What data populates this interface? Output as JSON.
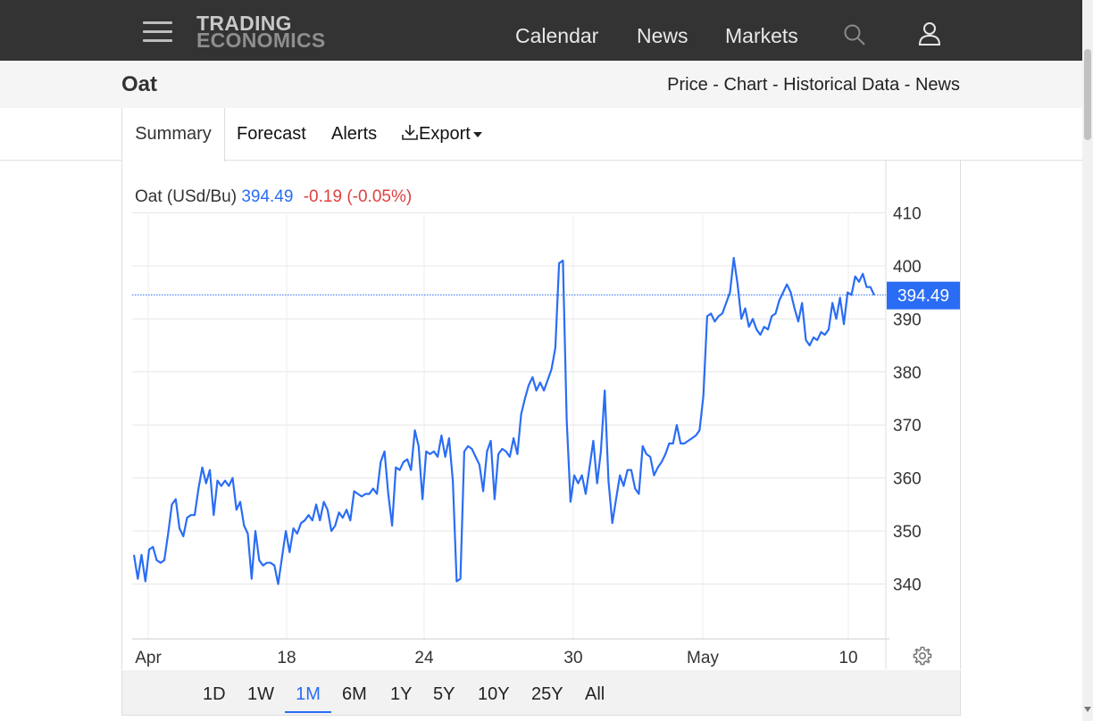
{
  "header": {
    "logo_line1": "TRADING",
    "logo_line2": "ECONOMICS",
    "nav": [
      "Calendar",
      "News",
      "Markets"
    ]
  },
  "subheader": {
    "title": "Oat",
    "links": "Price - Chart - Historical Data - News"
  },
  "tabs": [
    "Summary",
    "Forecast",
    "Alerts",
    "Export"
  ],
  "legend": {
    "name": "Oat (USd/Bu)",
    "price": "394.49",
    "change": "-0.19 (-0.05%)"
  },
  "colors": {
    "line": "#2a6df4",
    "negative": "#e0403f",
    "topbar": "#333333"
  },
  "ranges": [
    "1D",
    "1W",
    "1M",
    "6M",
    "1Y",
    "5Y",
    "10Y",
    "25Y",
    "All"
  ],
  "active_range": "1M",
  "chart_data": {
    "type": "line",
    "grid": true,
    "last_value": 394.49,
    "ylim": [
      330,
      414
    ],
    "yticks": [
      340,
      350,
      360,
      370,
      380,
      390,
      400,
      410
    ],
    "xticks": [
      "Apr",
      "18",
      "24",
      "30",
      "May",
      "10"
    ],
    "series": [
      {
        "name": "Oat (USd/Bu)",
        "points": [
          [
            "Apr 11",
            345.5
          ],
          [
            "Apr 11",
            341.0
          ],
          [
            "Apr 11",
            345.5
          ],
          [
            "Apr 11",
            340.5
          ],
          [
            "Apr 12",
            346.5
          ],
          [
            "Apr 12",
            347.0
          ],
          [
            "Apr 12",
            344.5
          ],
          [
            "Apr 12",
            344.0
          ],
          [
            "Apr 13",
            344.5
          ],
          [
            "Apr 13",
            349.5
          ],
          [
            "Apr 13",
            355.0
          ],
          [
            "Apr 13",
            356.0
          ],
          [
            "Apr 13",
            350.5
          ],
          [
            "Apr 14",
            349.0
          ],
          [
            "Apr 14",
            352.5
          ],
          [
            "Apr 14",
            353.0
          ],
          [
            "Apr 14",
            353.0
          ],
          [
            "Apr 14",
            358.0
          ],
          [
            "Apr 15",
            362.0
          ],
          [
            "Apr 15",
            359.0
          ],
          [
            "Apr 15",
            361.5
          ],
          [
            "Apr 15",
            353.0
          ],
          [
            "Apr 15",
            359.5
          ],
          [
            "Apr 16",
            358.5
          ],
          [
            "Apr 16",
            359.5
          ],
          [
            "Apr 16",
            358.5
          ],
          [
            "Apr 16",
            360.0
          ],
          [
            "Apr 16",
            354.0
          ],
          [
            "Apr 16",
            355.5
          ],
          [
            "Apr 16",
            351.0
          ],
          [
            "Apr 16",
            349.5
          ],
          [
            "Apr 17",
            341.0
          ],
          [
            "Apr 17",
            350.0
          ],
          [
            "Apr 17",
            344.5
          ],
          [
            "Apr 17",
            343.5
          ],
          [
            "Apr 17",
            344.0
          ],
          [
            "Apr 17",
            344.0
          ],
          [
            "Apr 18",
            343.5
          ],
          [
            "Apr 18",
            340.0
          ],
          [
            "Apr 18",
            345.0
          ],
          [
            "Apr 18",
            350.0
          ],
          [
            "Apr 18",
            346.0
          ],
          [
            "Apr 18",
            350.5
          ],
          [
            "Apr 18",
            349.5
          ],
          [
            "Apr 18",
            351.5
          ],
          [
            "Apr 19",
            352.0
          ],
          [
            "Apr 19",
            353.0
          ],
          [
            "Apr 19",
            352.0
          ],
          [
            "Apr 19",
            355.0
          ],
          [
            "Apr 19",
            352.0
          ],
          [
            "Apr 19",
            355.5
          ],
          [
            "Apr 19",
            354.0
          ],
          [
            "Apr 19",
            350.0
          ],
          [
            "Apr 20",
            351.0
          ],
          [
            "Apr 20",
            353.5
          ],
          [
            "Apr 20",
            352.5
          ],
          [
            "Apr 20",
            354.0
          ],
          [
            "Apr 20",
            352.0
          ],
          [
            "Apr 20",
            357.5
          ],
          [
            "Apr 20",
            357.0
          ],
          [
            "Apr 21",
            356.5
          ],
          [
            "Apr 21",
            357.0
          ],
          [
            "Apr 21",
            357.0
          ],
          [
            "Apr 21",
            358.0
          ],
          [
            "Apr 21",
            357.0
          ],
          [
            "Apr 21",
            363.0
          ],
          [
            "Apr 21",
            365.0
          ],
          [
            "Apr 22",
            357.0
          ],
          [
            "Apr 22",
            351.0
          ],
          [
            "Apr 22",
            362.0
          ],
          [
            "Apr 22",
            361.5
          ],
          [
            "Apr 22",
            363.0
          ],
          [
            "Apr 22",
            363.5
          ],
          [
            "Apr 22",
            361.5
          ],
          [
            "Apr 23",
            369.0
          ],
          [
            "Apr 23",
            366.0
          ],
          [
            "Apr 23",
            356.0
          ],
          [
            "Apr 23",
            365.0
          ],
          [
            "Apr 23",
            364.5
          ],
          [
            "Apr 24",
            365.0
          ],
          [
            "Apr 24",
            364.0
          ],
          [
            "Apr 24",
            368.0
          ],
          [
            "Apr 24",
            364.0
          ],
          [
            "Apr 24",
            367.5
          ],
          [
            "Apr 25",
            359.5
          ],
          [
            "Apr 25",
            340.5
          ],
          [
            "Apr 25",
            341.0
          ],
          [
            "Apr 25",
            365.0
          ],
          [
            "Apr 25",
            366.0
          ],
          [
            "Apr 25",
            365.5
          ],
          [
            "Apr 26",
            364.0
          ],
          [
            "Apr 26",
            362.5
          ],
          [
            "Apr 26",
            357.5
          ],
          [
            "Apr 26",
            365.0
          ],
          [
            "Apr 26",
            367.0
          ],
          [
            "Apr 26",
            356.0
          ],
          [
            "Apr 26",
            364.5
          ],
          [
            "Apr 27",
            365.5
          ],
          [
            "Apr 27",
            365.0
          ],
          [
            "Apr 27",
            364.0
          ],
          [
            "Apr 27",
            367.5
          ],
          [
            "Apr 27",
            364.5
          ],
          [
            "Apr 28",
            372.0
          ],
          [
            "Apr 28",
            375.0
          ],
          [
            "Apr 28",
            377.5
          ],
          [
            "Apr 28",
            379.0
          ],
          [
            "Apr 28",
            376.5
          ],
          [
            "Apr 28",
            378.0
          ],
          [
            "Apr 28",
            376.5
          ],
          [
            "Apr 28",
            378.5
          ],
          [
            "Apr 28",
            380.5
          ],
          [
            "Apr 28",
            384.5
          ],
          [
            "Apr 29",
            400.5
          ],
          [
            "Apr 29",
            401.0
          ],
          [
            "Apr 29",
            371.0
          ],
          [
            "Apr 29",
            355.5
          ],
          [
            "Apr 29",
            360.5
          ],
          [
            "Apr 29",
            359.0
          ],
          [
            "Apr 29",
            360.5
          ],
          [
            "Apr 30",
            357.0
          ],
          [
            "Apr 30",
            362.0
          ],
          [
            "Apr 30",
            367.0
          ],
          [
            "Apr 30",
            359.0
          ],
          [
            "Apr 30",
            365.0
          ],
          [
            "Apr 30",
            376.5
          ],
          [
            "Apr 30",
            359.5
          ],
          [
            "Apr 30",
            351.5
          ],
          [
            "Apr 30",
            356.0
          ],
          [
            "May 1",
            360.5
          ],
          [
            "May 1",
            358.5
          ],
          [
            "May 1",
            361.5
          ],
          [
            "May 1",
            361.5
          ],
          [
            "May 1",
            358.0
          ],
          [
            "May 1",
            357.0
          ],
          [
            "May 1",
            366.0
          ],
          [
            "May 1",
            364.5
          ],
          [
            "May 2",
            364.0
          ],
          [
            "May 2",
            360.5
          ],
          [
            "May 2",
            362.0
          ],
          [
            "May 2",
            363.0
          ],
          [
            "May 2",
            364.5
          ],
          [
            "May 2",
            366.5
          ],
          [
            "May 2",
            366.5
          ],
          [
            "May 2",
            370.0
          ],
          [
            "May 3",
            366.5
          ],
          [
            "May 3",
            366.5
          ],
          [
            "May 3",
            367.0
          ],
          [
            "May 3",
            367.5
          ],
          [
            "May 3",
            368.0
          ],
          [
            "May 3",
            369.0
          ],
          [
            "May 3",
            375.5
          ],
          [
            "May 4",
            390.5
          ],
          [
            "May 4",
            391.0
          ],
          [
            "May 4",
            389.5
          ],
          [
            "May 4",
            390.5
          ],
          [
            "May 4",
            391.0
          ],
          [
            "May 4",
            393.0
          ],
          [
            "May 4",
            395.0
          ],
          [
            "May 4",
            401.5
          ],
          [
            "May 5",
            396.5
          ],
          [
            "May 5",
            390.0
          ],
          [
            "May 5",
            392.0
          ],
          [
            "May 5",
            388.5
          ],
          [
            "May 5",
            390.0
          ],
          [
            "May 5",
            388.0
          ],
          [
            "May 5",
            387.0
          ],
          [
            "May 6",
            388.5
          ],
          [
            "May 6",
            388.0
          ],
          [
            "May 6",
            390.5
          ],
          [
            "May 6",
            391.0
          ],
          [
            "May 6",
            393.5
          ],
          [
            "May 6",
            395.0
          ],
          [
            "May 6",
            396.5
          ],
          [
            "May 7",
            395.0
          ],
          [
            "May 7",
            392.0
          ],
          [
            "May 7",
            389.5
          ],
          [
            "May 7",
            393.0
          ],
          [
            "May 7",
            386.0
          ],
          [
            "May 7",
            385.0
          ],
          [
            "May 8",
            386.5
          ],
          [
            "May 8",
            386.0
          ],
          [
            "May 8",
            387.5
          ],
          [
            "May 8",
            387.0
          ],
          [
            "May 8",
            388.0
          ],
          [
            "May 9",
            393.0
          ],
          [
            "May 9",
            390.0
          ],
          [
            "May 9",
            394.0
          ],
          [
            "May 9",
            389.0
          ],
          [
            "May 9",
            395.0
          ],
          [
            "May 9",
            394.5
          ],
          [
            "May 9",
            398.0
          ],
          [
            "May 10",
            397.0
          ],
          [
            "May 10",
            398.5
          ],
          [
            "May 10",
            396.0
          ],
          [
            "May 10",
            396.0
          ],
          [
            "May 10",
            394.5
          ]
        ]
      }
    ]
  }
}
